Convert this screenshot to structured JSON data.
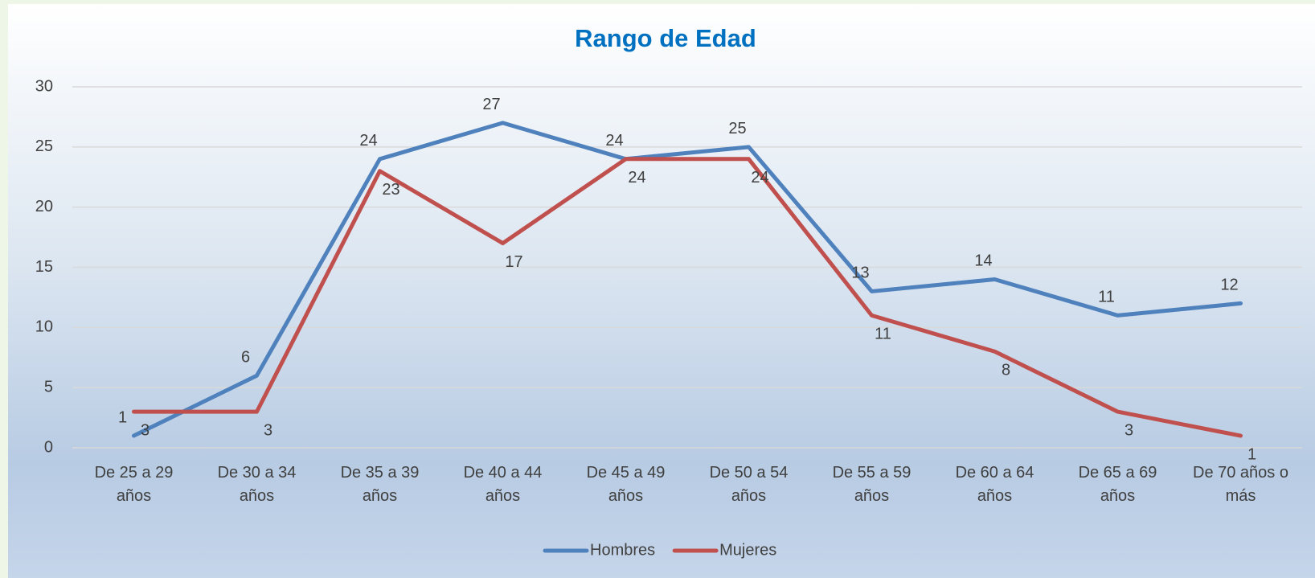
{
  "chart_data": {
    "type": "line",
    "title": "Rango de Edad",
    "categories": [
      "De 25 a 29 años",
      "De 30 a 34 años",
      "De 35 a 39 años",
      "De 40 a 44 años",
      "De 45 a 49 años",
      "De 50 a 54 años",
      "De 55 a 59 años",
      "De 60 a 64 años",
      "De 65 a 69 años",
      "De 70 años o más"
    ],
    "series": [
      {
        "name": "Hombres",
        "color": "#4f81bd",
        "values": [
          1,
          6,
          24,
          27,
          24,
          25,
          13,
          14,
          11,
          12
        ]
      },
      {
        "name": "Mujeres",
        "color": "#c0504d",
        "values": [
          3,
          3,
          23,
          17,
          24,
          24,
          11,
          8,
          3,
          1
        ]
      }
    ],
    "ylim": [
      0,
      30
    ],
    "yticks": [
      0,
      5,
      10,
      15,
      20,
      25,
      30
    ],
    "grid": true,
    "legend": "bottom"
  }
}
